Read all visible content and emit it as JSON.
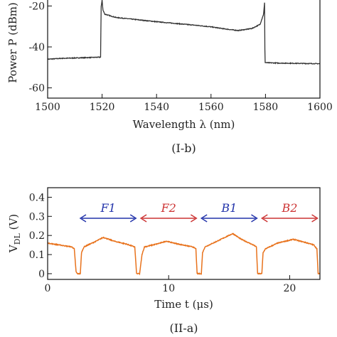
{
  "chart_data": [
    {
      "type": "line",
      "panel_label": "(I-b)",
      "xlabel": "Wavelength λ (nm)",
      "ylabel": "Power P (dBm)",
      "xlim": [
        1500,
        1600
      ],
      "ylim": [
        -65,
        -15
      ],
      "xticks": [
        1500,
        1520,
        1540,
        1560,
        1580,
        1600
      ],
      "yticks": [
        -60,
        -40,
        -20
      ],
      "grid": false,
      "color": "#333333",
      "series": [
        {
          "x": [
            1500,
            1505,
            1510,
            1515,
            1519.5,
            1519.6,
            1520,
            1520.3,
            1521,
            1525,
            1530,
            1535,
            1540,
            1545,
            1550,
            1555,
            1560,
            1565,
            1570,
            1575,
            1578,
            1579.3,
            1579.7,
            1579.8,
            1580.2,
            1585,
            1590,
            1595,
            1600
          ],
          "y": [
            -46,
            -45.6,
            -45.4,
            -45.2,
            -45,
            -21,
            -17,
            -22,
            -24,
            -25.6,
            -26.3,
            -27,
            -27.7,
            -28.3,
            -28.9,
            -29.5,
            -30.2,
            -31.2,
            -32,
            -31,
            -29,
            -24,
            -18,
            -47.5,
            -47.7,
            -47.9,
            -48,
            -48.1,
            -48.2
          ]
        }
      ]
    },
    {
      "type": "line",
      "panel_label": "(II-a)",
      "xlabel": "Time t (μs)",
      "ylabel": "V_DL (V)",
      "xlim": [
        0,
        22.5
      ],
      "ylim": [
        -0.03,
        0.45
      ],
      "xticks": [
        0,
        10,
        20
      ],
      "yticks": [
        0,
        0.1,
        0.2,
        0.3,
        0.4
      ],
      "grid": false,
      "color": "#e8721c",
      "series": [
        {
          "x": [
            0,
            1,
            2,
            2.2,
            2.35,
            2.45,
            2.7,
            2.8,
            3,
            4,
            4.6,
            5.5,
            6.5,
            7.2,
            7.35,
            7.45,
            7.6,
            7.8,
            8,
            9,
            9.8,
            10.8,
            12,
            12.25,
            12.35,
            12.45,
            12.7,
            12.8,
            13,
            14,
            15.3,
            16,
            17,
            17.25,
            17.35,
            17.45,
            17.7,
            17.8,
            18,
            19,
            20.3,
            21.5,
            22,
            22.25,
            22.35,
            22.5
          ],
          "y": [
            0.16,
            0.15,
            0.14,
            0.13,
            0.01,
            0.0,
            0.0,
            0.11,
            0.14,
            0.17,
            0.19,
            0.17,
            0.155,
            0.14,
            0.0,
            0.0,
            0.0,
            0.1,
            0.14,
            0.155,
            0.17,
            0.155,
            0.14,
            0.13,
            0.0,
            0.0,
            0.0,
            0.11,
            0.14,
            0.17,
            0.21,
            0.18,
            0.15,
            0.14,
            0.0,
            0.0,
            0.0,
            0.11,
            0.13,
            0.16,
            0.18,
            0.16,
            0.15,
            0.13,
            0.0,
            0.0
          ]
        }
      ],
      "annotations": [
        {
          "label": "F1",
          "x_start": 2.7,
          "x_end": 7.3,
          "y": 0.29,
          "color": "#2233aa"
        },
        {
          "label": "F2",
          "x_start": 7.7,
          "x_end": 12.3,
          "y": 0.29,
          "color": "#cc3333"
        },
        {
          "label": "B1",
          "x_start": 12.7,
          "x_end": 17.3,
          "y": 0.29,
          "color": "#2233aa"
        },
        {
          "label": "B2",
          "x_start": 17.7,
          "x_end": 22.3,
          "y": 0.29,
          "color": "#cc3333"
        }
      ]
    }
  ]
}
